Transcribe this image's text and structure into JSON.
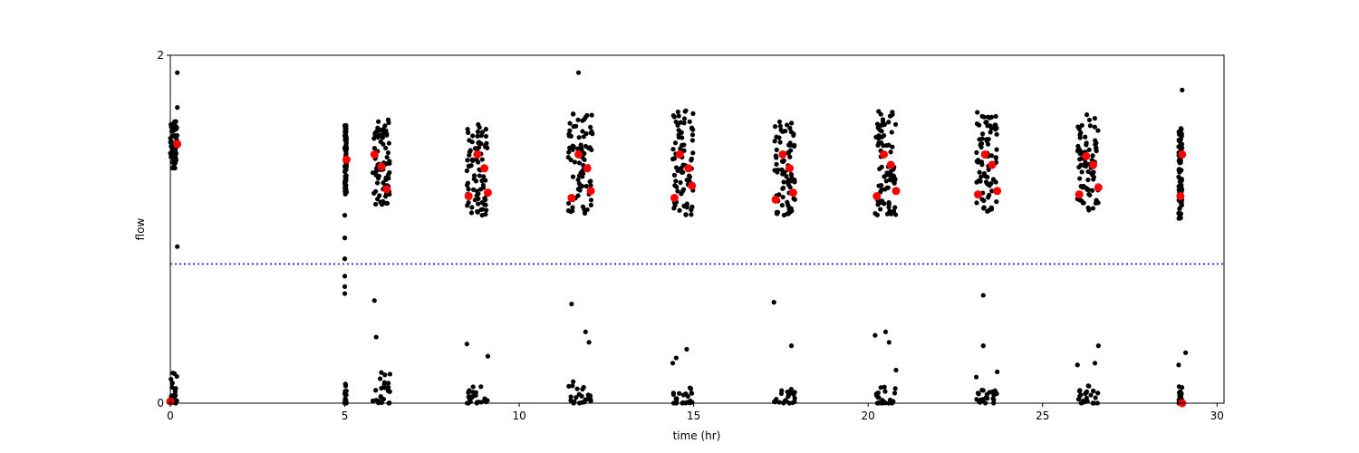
{
  "chart_data": {
    "type": "scatter",
    "title": "",
    "xlabel": "time (hr)",
    "ylabel": "flow",
    "xlim": [
      0,
      30.2
    ],
    "ylim": [
      0,
      2
    ],
    "xticks": [
      0,
      5,
      10,
      15,
      20,
      25,
      30
    ],
    "yticks": [
      0,
      2
    ],
    "grid": false,
    "reference_line": {
      "y": 0.8,
      "style": "dotted",
      "color": "#0000ff"
    },
    "colors": {
      "raw": "#000000",
      "mean": "#ff0000",
      "threshold": "#0000ff"
    },
    "series": [
      {
        "role": "raw",
        "clusters": [
          {
            "x": [
              0.0,
              0.2
            ],
            "hi": [
              1.35,
              1.62
            ],
            "lo": [
              0.0,
              0.18
            ]
          },
          {
            "x": [
              5.0,
              5.05
            ],
            "hi": [
              1.2,
              1.6
            ],
            "lo": [
              0.0,
              0.12
            ]
          },
          {
            "x": [
              5.8,
              6.3
            ],
            "hi": [
              1.14,
              1.63
            ],
            "lo": [
              0.0,
              0.18
            ]
          },
          {
            "x": [
              8.5,
              9.1
            ],
            "hi": [
              1.08,
              1.62
            ],
            "lo": [
              0.0,
              0.12
            ]
          },
          {
            "x": [
              11.4,
              12.1
            ],
            "hi": [
              1.08,
              1.68
            ],
            "lo": [
              0.0,
              0.14
            ]
          },
          {
            "x": [
              14.4,
              15.0
            ],
            "hi": [
              1.08,
              1.7
            ],
            "lo": [
              0.0,
              0.1
            ]
          },
          {
            "x": [
              17.3,
              17.9
            ],
            "hi": [
              1.08,
              1.62
            ],
            "lo": [
              0.0,
              0.1
            ]
          },
          {
            "x": [
              20.2,
              20.8
            ],
            "hi": [
              1.08,
              1.68
            ],
            "lo": [
              0.0,
              0.1
            ]
          },
          {
            "x": [
              23.1,
              23.7
            ],
            "hi": [
              1.1,
              1.68
            ],
            "lo": [
              0.0,
              0.1
            ]
          },
          {
            "x": [
              26.0,
              26.6
            ],
            "hi": [
              1.1,
              1.66
            ],
            "lo": [
              0.0,
              0.1
            ]
          },
          {
            "x": [
              28.9,
              29.0
            ],
            "hi": [
              1.06,
              1.58
            ],
            "lo": [
              0.0,
              0.1
            ]
          }
        ],
        "outliers": [
          {
            "x": 0.2,
            "y": 1.9
          },
          {
            "x": 0.2,
            "y": 0.9
          },
          {
            "x": 0.2,
            "y": 1.7
          },
          {
            "x": 5.0,
            "y": 1.08
          },
          {
            "x": 5.0,
            "y": 0.95
          },
          {
            "x": 5.0,
            "y": 0.83
          },
          {
            "x": 5.0,
            "y": 0.73
          },
          {
            "x": 5.0,
            "y": 0.67
          },
          {
            "x": 5.0,
            "y": 0.63
          },
          {
            "x": 5.85,
            "y": 0.59
          },
          {
            "x": 5.9,
            "y": 0.38
          },
          {
            "x": 8.5,
            "y": 0.34
          },
          {
            "x": 9.1,
            "y": 0.27
          },
          {
            "x": 11.5,
            "y": 0.57
          },
          {
            "x": 11.9,
            "y": 0.41
          },
          {
            "x": 12.0,
            "y": 0.35
          },
          {
            "x": 11.7,
            "y": 1.9
          },
          {
            "x": 14.5,
            "y": 0.26
          },
          {
            "x": 14.8,
            "y": 0.31
          },
          {
            "x": 14.4,
            "y": 0.23
          },
          {
            "x": 17.3,
            "y": 0.58
          },
          {
            "x": 17.8,
            "y": 0.33
          },
          {
            "x": 20.2,
            "y": 0.39
          },
          {
            "x": 20.5,
            "y": 0.41
          },
          {
            "x": 20.6,
            "y": 0.35
          },
          {
            "x": 20.8,
            "y": 0.19
          },
          {
            "x": 23.3,
            "y": 0.62
          },
          {
            "x": 23.3,
            "y": 0.33
          },
          {
            "x": 23.1,
            "y": 0.15
          },
          {
            "x": 23.7,
            "y": 0.18
          },
          {
            "x": 26.0,
            "y": 0.22
          },
          {
            "x": 26.5,
            "y": 0.23
          },
          {
            "x": 26.6,
            "y": 0.33
          },
          {
            "x": 28.9,
            "y": 0.22
          },
          {
            "x": 29.1,
            "y": 0.29
          },
          {
            "x": 29.0,
            "y": 1.8
          }
        ]
      },
      {
        "role": "mean",
        "points": [
          {
            "x": 0.2,
            "y": 1.49
          },
          {
            "x": 5.05,
            "y": 1.4
          },
          {
            "x": 5.85,
            "y": 1.43
          },
          {
            "x": 6.05,
            "y": 1.36
          },
          {
            "x": 6.2,
            "y": 1.23
          },
          {
            "x": 8.55,
            "y": 1.19
          },
          {
            "x": 8.8,
            "y": 1.43
          },
          {
            "x": 9.0,
            "y": 1.35
          },
          {
            "x": 9.1,
            "y": 1.21
          },
          {
            "x": 11.5,
            "y": 1.18
          },
          {
            "x": 11.7,
            "y": 1.43
          },
          {
            "x": 11.95,
            "y": 1.35
          },
          {
            "x": 12.05,
            "y": 1.22
          },
          {
            "x": 14.45,
            "y": 1.18
          },
          {
            "x": 14.6,
            "y": 1.43
          },
          {
            "x": 14.85,
            "y": 1.35
          },
          {
            "x": 14.95,
            "y": 1.25
          },
          {
            "x": 17.35,
            "y": 1.17
          },
          {
            "x": 17.55,
            "y": 1.43
          },
          {
            "x": 17.75,
            "y": 1.35
          },
          {
            "x": 17.85,
            "y": 1.21
          },
          {
            "x": 20.25,
            "y": 1.19
          },
          {
            "x": 20.45,
            "y": 1.43
          },
          {
            "x": 20.65,
            "y": 1.37
          },
          {
            "x": 20.8,
            "y": 1.22
          },
          {
            "x": 23.15,
            "y": 1.2
          },
          {
            "x": 23.35,
            "y": 1.43
          },
          {
            "x": 23.55,
            "y": 1.37
          },
          {
            "x": 23.7,
            "y": 1.22
          },
          {
            "x": 26.05,
            "y": 1.2
          },
          {
            "x": 26.25,
            "y": 1.42
          },
          {
            "x": 26.45,
            "y": 1.37
          },
          {
            "x": 26.6,
            "y": 1.24
          },
          {
            "x": 28.95,
            "y": 1.19
          },
          {
            "x": 29.0,
            "y": 1.43
          },
          {
            "x": 0.0,
            "y": 0.01
          },
          {
            "x": 29.0,
            "y": 0.0
          }
        ]
      }
    ]
  }
}
